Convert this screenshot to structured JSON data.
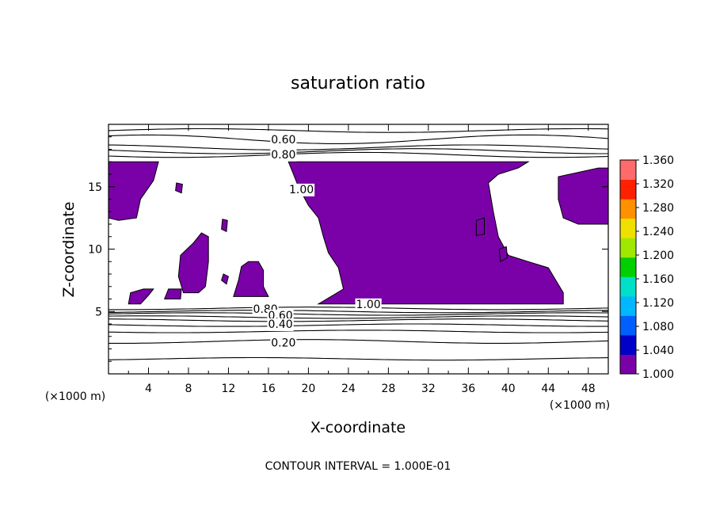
{
  "chart_data": {
    "type": "heatmap",
    "title": "saturation ratio",
    "xlabel": "X-coordinate",
    "ylabel": "Z-coordinate",
    "x_unit": "(×1000 m)",
    "z_unit": "(×1000 m)",
    "footer": "CONTOUR INTERVAL = 1.000E-01",
    "xlim": [
      0,
      50
    ],
    "ylim": [
      0,
      20
    ],
    "x_ticks": [
      4,
      8,
      12,
      16,
      20,
      24,
      28,
      32,
      36,
      40,
      44,
      48
    ],
    "y_ticks": [
      5,
      10,
      15
    ],
    "contour_labels": [
      {
        "text": "0.60",
        "x": 17.5,
        "z": 18.8
      },
      {
        "text": "0.80",
        "x": 17.5,
        "z": 17.6
      },
      {
        "text": "1.00",
        "x": 19.3,
        "z": 14.8
      },
      {
        "text": "1.00",
        "x": 26.0,
        "z": 5.6
      },
      {
        "text": "0.80",
        "x": 15.7,
        "z": 5.2
      },
      {
        "text": "0.60",
        "x": 17.2,
        "z": 4.7
      },
      {
        "text": "0.40",
        "x": 17.2,
        "z": 4.0
      },
      {
        "text": "0.20",
        "x": 17.5,
        "z": 2.5
      }
    ],
    "levels": [
      {
        "z": 19.5,
        "amp": 0.15
      },
      {
        "z": 18.8,
        "amp": 0.35
      },
      {
        "z": 18.15,
        "amp": 0.2
      },
      {
        "z": 17.85,
        "amp": 0.2
      },
      {
        "z": 17.55,
        "amp": 0.2
      },
      {
        "z": 5.25,
        "amp": 0.1
      },
      {
        "z": 5.0,
        "amp": 0.1
      },
      {
        "z": 4.8,
        "amp": 0.1
      },
      {
        "z": 4.55,
        "amp": 0.1
      },
      {
        "z": 4.3,
        "amp": 0.1
      },
      {
        "z": 3.9,
        "amp": 0.1
      },
      {
        "z": 3.4,
        "amp": 0.1
      },
      {
        "z": 2.6,
        "amp": 0.15
      },
      {
        "z": 1.2,
        "amp": 0.1
      }
    ],
    "supersaturated_regions": [
      [
        [
          0,
          17
        ],
        [
          5,
          17
        ],
        [
          4.5,
          15.5
        ],
        [
          3.2,
          14
        ],
        [
          2.8,
          12.5
        ],
        [
          1,
          12.3
        ],
        [
          0,
          12.5
        ]
      ],
      [
        [
          18,
          17
        ],
        [
          42,
          17
        ],
        [
          41,
          16.5
        ],
        [
          39,
          16
        ],
        [
          38,
          15.3
        ],
        [
          38.5,
          13
        ],
        [
          39,
          11
        ],
        [
          40,
          9.5
        ],
        [
          42,
          9
        ],
        [
          44,
          8.5
        ],
        [
          45.5,
          6.5
        ],
        [
          45.5,
          5.6
        ],
        [
          21,
          5.6
        ],
        [
          23.5,
          6.8
        ],
        [
          23,
          8.5
        ],
        [
          22,
          9.7
        ],
        [
          21.5,
          11
        ],
        [
          21,
          12.5
        ],
        [
          20,
          13.5
        ],
        [
          19,
          15
        ],
        [
          18.5,
          16
        ]
      ],
      [
        [
          45,
          15.8
        ],
        [
          49,
          16.5
        ],
        [
          50,
          16.5
        ],
        [
          50,
          12
        ],
        [
          47,
          12
        ],
        [
          45.5,
          12.5
        ],
        [
          45,
          14
        ]
      ],
      [
        [
          7.2,
          9.5
        ],
        [
          8.5,
          10.5
        ],
        [
          9.3,
          11.3
        ],
        [
          10,
          11
        ],
        [
          10,
          9
        ],
        [
          9.7,
          7
        ],
        [
          9,
          6.5
        ],
        [
          7.5,
          6.5
        ],
        [
          7,
          7.8
        ]
      ],
      [
        [
          12.5,
          6.2
        ],
        [
          13,
          7.5
        ],
        [
          13.3,
          8.6
        ],
        [
          14,
          9
        ],
        [
          15,
          9
        ],
        [
          15.5,
          8.3
        ],
        [
          15.5,
          7
        ],
        [
          16,
          6.2
        ]
      ],
      [
        [
          2,
          5.6
        ],
        [
          3.2,
          5.6
        ],
        [
          4,
          6.3
        ],
        [
          4.5,
          6.8
        ],
        [
          3.5,
          6.8
        ],
        [
          2.2,
          6.5
        ]
      ],
      [
        [
          5.6,
          6
        ],
        [
          7.2,
          6
        ],
        [
          7.3,
          6.8
        ],
        [
          6,
          6.8
        ]
      ],
      [
        [
          11.3,
          11.6
        ],
        [
          11.8,
          11.4
        ],
        [
          11.9,
          12.3
        ],
        [
          11.4,
          12.4
        ]
      ],
      [
        [
          6.7,
          14.7
        ],
        [
          7.3,
          14.5
        ],
        [
          7.4,
          15.2
        ],
        [
          6.8,
          15.3
        ]
      ],
      [
        [
          36.8,
          11.1
        ],
        [
          37.6,
          11.2
        ],
        [
          37.6,
          12.5
        ],
        [
          36.8,
          12.3
        ]
      ],
      [
        [
          39.2,
          9.0
        ],
        [
          39.9,
          9.3
        ],
        [
          39.8,
          10.2
        ],
        [
          39.1,
          10.0
        ]
      ],
      [
        [
          11.3,
          7.5
        ],
        [
          11.8,
          7.2
        ],
        [
          12.0,
          7.8
        ],
        [
          11.5,
          8.0
        ]
      ]
    ],
    "colorbar": {
      "ticks": [
        "1.360",
        "1.320",
        "1.280",
        "1.240",
        "1.200",
        "1.160",
        "1.120",
        "1.080",
        "1.040",
        "1.000"
      ],
      "colors": [
        "#7a00a8",
        "#0000c8",
        "#0060ff",
        "#00b8ff",
        "#00e0c8",
        "#00d000",
        "#a0e800",
        "#f0e000",
        "#ff9000",
        "#ff2000",
        "#ff6a6a"
      ]
    }
  }
}
